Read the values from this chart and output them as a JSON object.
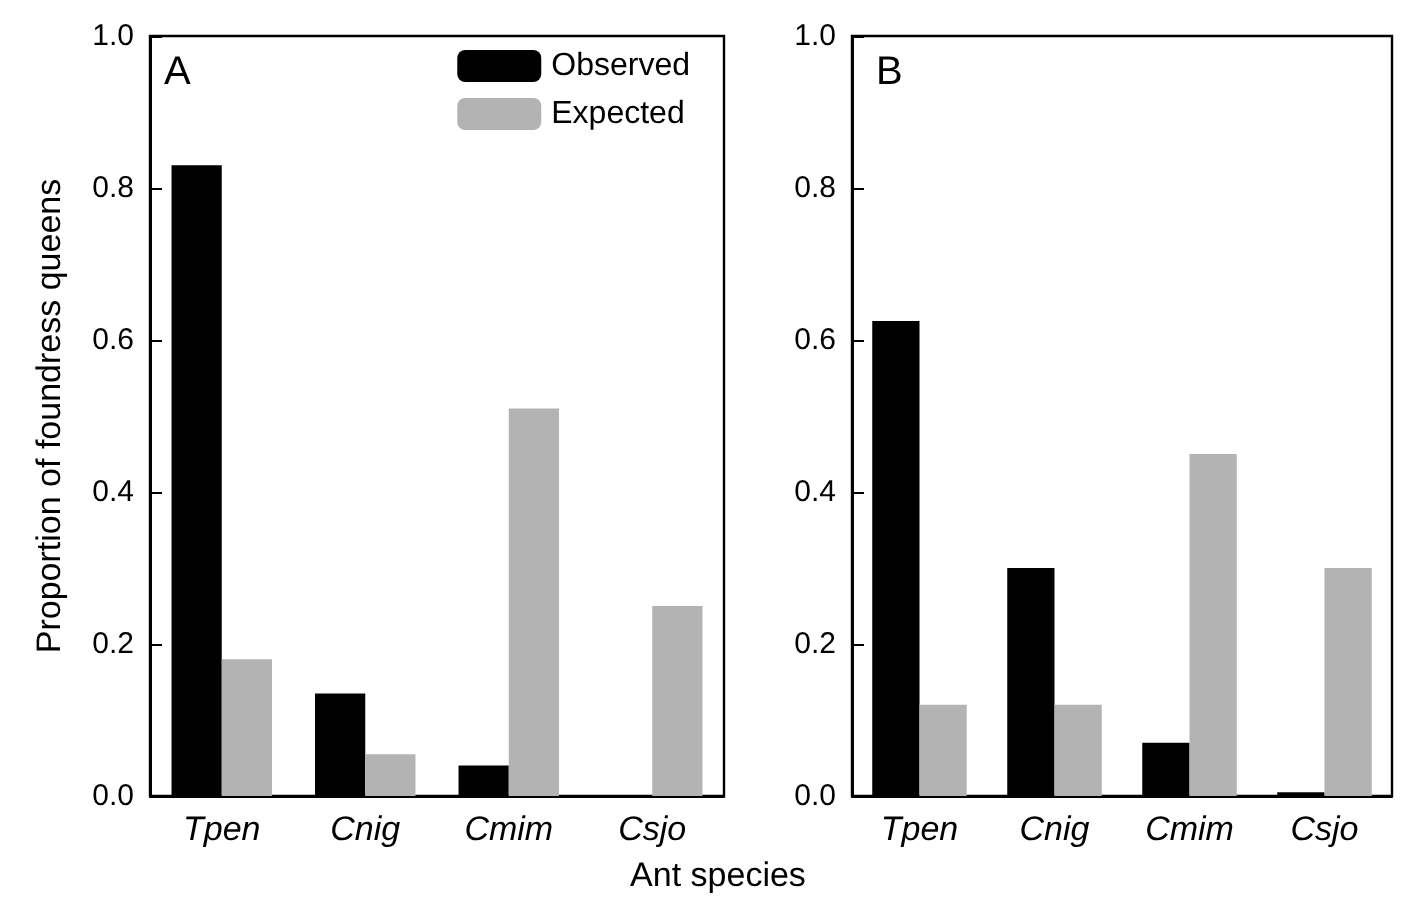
{
  "chart_data": [
    {
      "type": "bar",
      "ylabel": "Proportion of foundress queens",
      "xlabel": "Ant species",
      "annotations": [
        "A"
      ],
      "categories": [
        "Tpen",
        "Cnig",
        "Cmim",
        "Csjo"
      ],
      "series": [
        {
          "name": "Observed",
          "color": "#000000",
          "values": [
            0.83,
            0.135,
            0.04,
            0
          ]
        },
        {
          "name": "Expected",
          "color": "#b3b3b3",
          "values": [
            0.18,
            0.055,
            0.51,
            0.25
          ]
        }
      ],
      "ylim": [
        0,
        1
      ],
      "yticks": [
        {
          "value": 0,
          "label": "0.0"
        },
        {
          "value": 0.2,
          "label": "0.2"
        },
        {
          "value": 0.4,
          "label": "0.4"
        },
        {
          "value": 0.6,
          "label": "0.6"
        },
        {
          "value": 0.8,
          "label": "0.8"
        },
        {
          "value": 1,
          "label": "1.0"
        }
      ],
      "legend": "top right",
      "grid": false
    },
    {
      "type": "bar",
      "annotations": [
        "B"
      ],
      "categories": [
        "Tpen",
        "Cnig",
        "Cmim",
        "Csjo"
      ],
      "series": [
        {
          "color": "#000000",
          "values": [
            0.625,
            0.3,
            0.07,
            0.005
          ]
        },
        {
          "color": "#b3b3b3",
          "values": [
            0.12,
            0.12,
            0.45,
            0.3
          ]
        }
      ],
      "ylim": [
        0,
        1
      ],
      "yticks": [
        {
          "value": 0,
          "label": "0.0"
        },
        {
          "value": 0.2,
          "label": "0.2"
        },
        {
          "value": 0.4,
          "label": "0.4"
        },
        {
          "value": 0.6,
          "label": "0.6"
        },
        {
          "value": 0.8,
          "label": "0.8"
        },
        {
          "value": 1,
          "label": "1.0"
        }
      ],
      "grid": false
    }
  ]
}
